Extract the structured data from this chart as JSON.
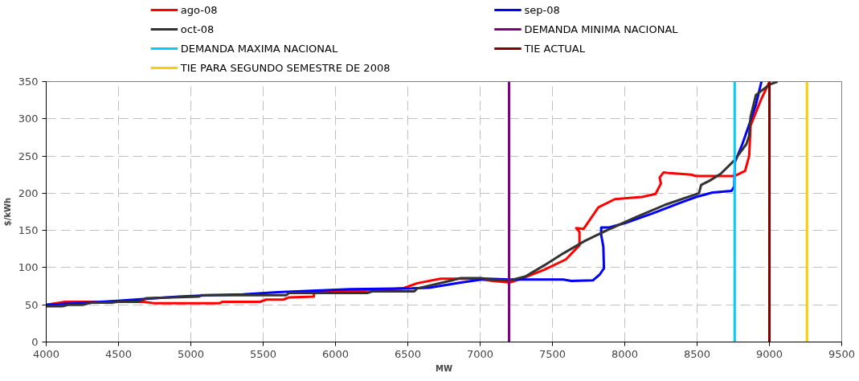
{
  "chart_data": {
    "type": "line",
    "xlabel": "MW",
    "ylabel": "$/kWh",
    "xlim": [
      4000,
      9500
    ],
    "xticks": [
      4000,
      4500,
      5000,
      5500,
      6000,
      6500,
      7000,
      7500,
      8000,
      8500,
      9000,
      9500
    ],
    "ylim": [
      0,
      350
    ],
    "yticks": [
      0,
      50,
      100,
      150,
      200,
      250,
      300,
      350
    ],
    "grid": true,
    "legend": "top",
    "line_style": "solid",
    "marker": "none",
    "series": [
      {
        "name": "ago-08",
        "color": "#ff0000",
        "x": [
          4000,
          4131,
          4674,
          4754,
          5197,
          5217,
          5479,
          5519,
          5640,
          5680,
          5851,
          5851,
          6102,
          6465,
          6565,
          6726,
          6968,
          7089,
          7208,
          7312,
          7443,
          7593,
          7687,
          7687,
          7664,
          7715,
          7818,
          7931,
          8119,
          8213,
          8250,
          8241,
          8269,
          8307,
          8457,
          8494,
          8757,
          8832,
          8860,
          8870,
          8945,
          9001
        ],
        "values": [
          50,
          54,
          54,
          52,
          52,
          54,
          54,
          57,
          57,
          60,
          61,
          68,
          68,
          72,
          79,
          85,
          85,
          82,
          80,
          87,
          97,
          111,
          130,
          148,
          153,
          152,
          181,
          192,
          195,
          199,
          213,
          221,
          228,
          227,
          225,
          223,
          223,
          230,
          250,
          291,
          327,
          350
        ]
      },
      {
        "name": "sep-08",
        "color": "#0000ff",
        "x": [
          4000,
          4473,
          4614,
          4915,
          5137,
          5358,
          5600,
          6102,
          6526,
          6647,
          6867,
          7048,
          7208,
          7574,
          7630,
          7781,
          7828,
          7856,
          7852,
          7837,
          7837,
          7893,
          8006,
          8194,
          8382,
          8494,
          8607,
          8738,
          8757,
          8762,
          8813,
          8851,
          8907,
          8945
        ],
        "values": [
          50,
          55,
          57,
          61,
          63,
          64,
          67,
          71,
          72,
          73,
          80,
          85,
          84,
          84,
          82,
          83,
          91,
          99,
          128,
          144,
          154,
          154,
          160,
          173,
          187,
          195,
          201,
          203,
          209,
          242,
          266,
          287,
          319,
          350
        ]
      },
      {
        "name": "oct-08",
        "color": "#333333",
        "x": [
          4000,
          4111,
          4151,
          4252,
          4312,
          4453,
          4493,
          4634,
          4694,
          4875,
          5056,
          5076,
          5660,
          5680,
          6223,
          6253,
          6545,
          6565,
          6807,
          6867,
          7008,
          7068,
          7208,
          7312,
          7443,
          7574,
          7725,
          7875,
          8081,
          8288,
          8513,
          8528,
          8588,
          8663,
          8757,
          8841,
          8860,
          8870,
          8907,
          9001,
          9057
        ],
        "values": [
          48,
          48,
          50,
          50,
          53,
          53,
          54,
          54,
          59,
          60,
          61,
          63,
          63,
          66,
          66,
          68,
          68,
          72,
          83,
          86,
          86,
          84,
          83,
          88,
          103,
          119,
          136,
          150,
          168,
          185,
          200,
          211,
          217,
          226,
          244,
          266,
          277,
          303,
          332,
          346,
          350
        ]
      },
      {
        "name": "DEMANDA MINIMA NACIONAL",
        "color": "#800080",
        "x": [
          7200,
          7200
        ],
        "values": [
          0,
          350
        ]
      },
      {
        "name": "DEMANDA MAXIMA NACIONAL",
        "color": "#00ccff",
        "x": [
          8760,
          8760
        ],
        "values": [
          0,
          350
        ]
      },
      {
        "name": "TIE ACTUAL",
        "color": "#800000",
        "x": [
          9000,
          9000
        ],
        "values": [
          0,
          350
        ]
      },
      {
        "name": "TIE PARA SEGUNDO SEMESTRE DE 2008",
        "color": "#ffcc00",
        "x": [
          9260,
          9260
        ],
        "values": [
          0,
          350
        ]
      }
    ]
  }
}
